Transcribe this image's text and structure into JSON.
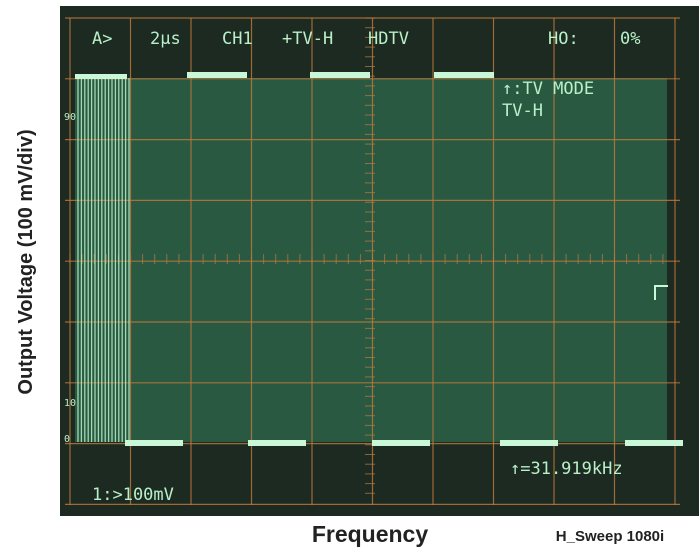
{
  "figure": {
    "y_axis_label": "Output Voltage (100 mV/div)",
    "x_axis_label": "Frequency",
    "caption": "H_Sweep 1080i"
  },
  "screen": {
    "top_bar": [
      "A>",
      "2μs",
      "CH1",
      "+TV-H",
      "HDTV",
      "HO:",
      "0%"
    ],
    "trigger_mode": "↑:TV MODE",
    "trigger_source": "TV-H",
    "marker_90": "90",
    "marker_10": "10",
    "marker_0": "0",
    "frequency_readout": "↑=31.919kHz",
    "channel_readout": "1:>100mV"
  }
}
